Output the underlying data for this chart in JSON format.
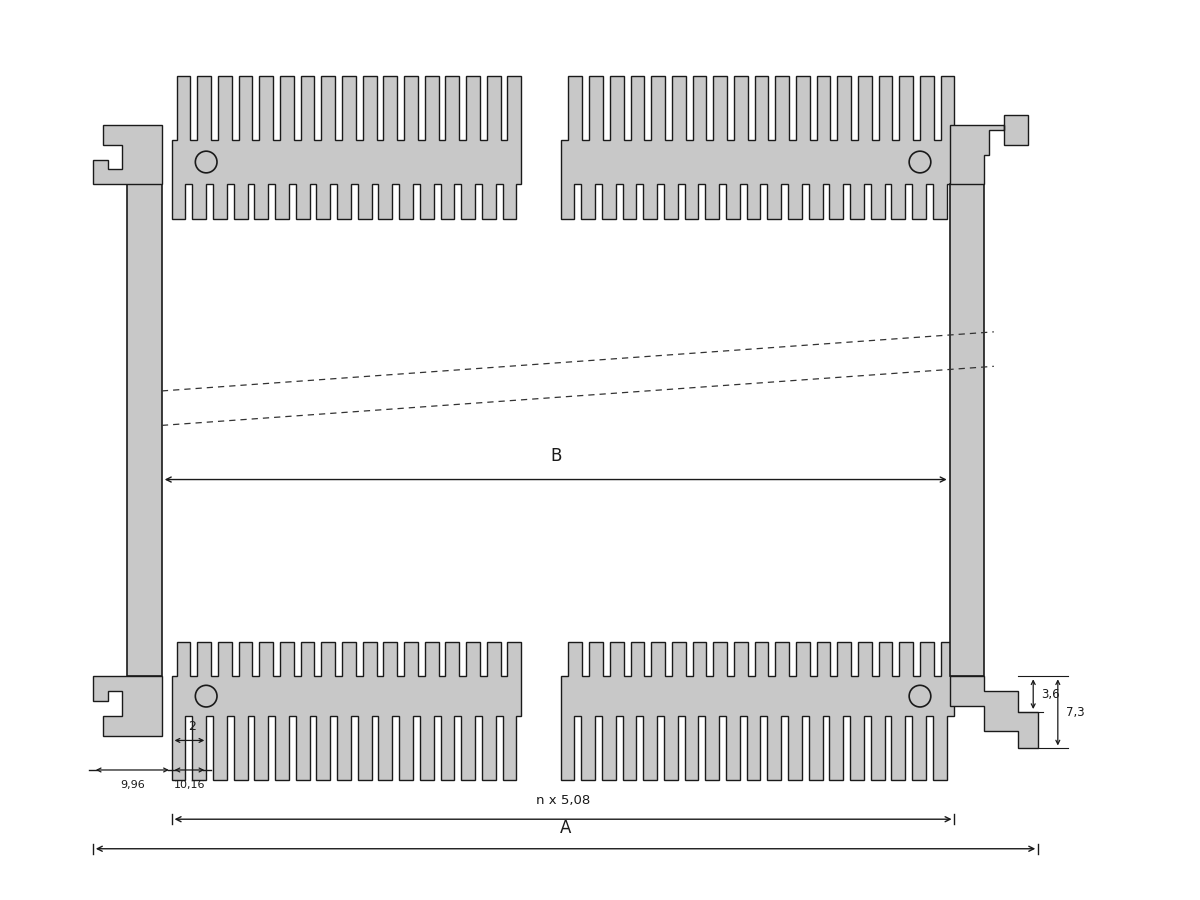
{
  "bg_color": "#ffffff",
  "line_color": "#1a1a1a",
  "fill_color": "#c8c8c8",
  "dim_color": "#1a1a1a",
  "figsize": [
    12,
    9
  ],
  "dpi": 100,
  "dims": {
    "B_label": "B",
    "A_label": "A",
    "n508_label": "n x 5,08",
    "d2_label": "2",
    "d996_label": "9,96",
    "d1016_label": "10,16",
    "d36_label": "3,6",
    "d73_label": "7,3"
  }
}
